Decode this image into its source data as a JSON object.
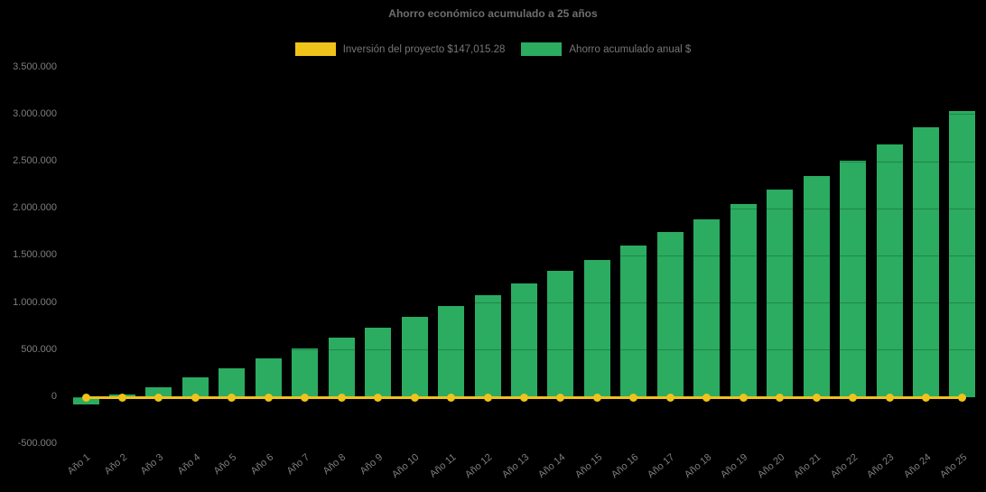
{
  "chart_data": {
    "type": "bar",
    "title": "Ahorro económico acumulado a 25 años",
    "categories": [
      "Año 1",
      "Año 2",
      "Año 3",
      "Año 4",
      "Año 5",
      "Año 6",
      "Año 7",
      "Año 8",
      "Año 9",
      "Año 10",
      "Año 11",
      "Año 12",
      "Año 13",
      "Año 14",
      "Año 15",
      "Año 16",
      "Año 17",
      "Año 18",
      "Año 19",
      "Año 20",
      "Año 21",
      "Año 22",
      "Año 23",
      "Año 24",
      "Año 25"
    ],
    "series": [
      {
        "name": "Inversión del proyecto $147,015.28",
        "type": "line",
        "color": "#EFC31A",
        "constant_value": 0,
        "marker": "circle"
      },
      {
        "name": "Ahorro acumulado anual $",
        "type": "bar",
        "color": "#2BAC61",
        "values": [
          -75000,
          30000,
          110000,
          210000,
          310000,
          410000,
          520000,
          630000,
          740000,
          850000,
          970000,
          1080000,
          1210000,
          1340000,
          1460000,
          1610000,
          1750000,
          1890000,
          2050000,
          2200000,
          2350000,
          2510000,
          2680000,
          2860000,
          3040000
        ]
      }
    ],
    "ylim": [
      -500000,
      3500000
    ],
    "ytick_step": 500000,
    "ytick_values": [
      3500000,
      3000000,
      2500000,
      2000000,
      1500000,
      1000000,
      500000,
      0,
      -500000
    ],
    "ytick_labels": [
      "3.500.000",
      "3.000.000",
      "2.500.000",
      "2.000.000",
      "1.500.000",
      "1.000.000",
      "500.000",
      "0",
      "-500.000"
    ],
    "legend_position": "top",
    "grid": "subtle-dark-overlay",
    "background": "#000000"
  },
  "colors": {
    "background": "#000000",
    "bar": "#2BAC61",
    "line": "#EFC31A",
    "tick_text": "#7E7E7E",
    "title_text": "#6E6E6E",
    "legend_text": "#767676"
  }
}
